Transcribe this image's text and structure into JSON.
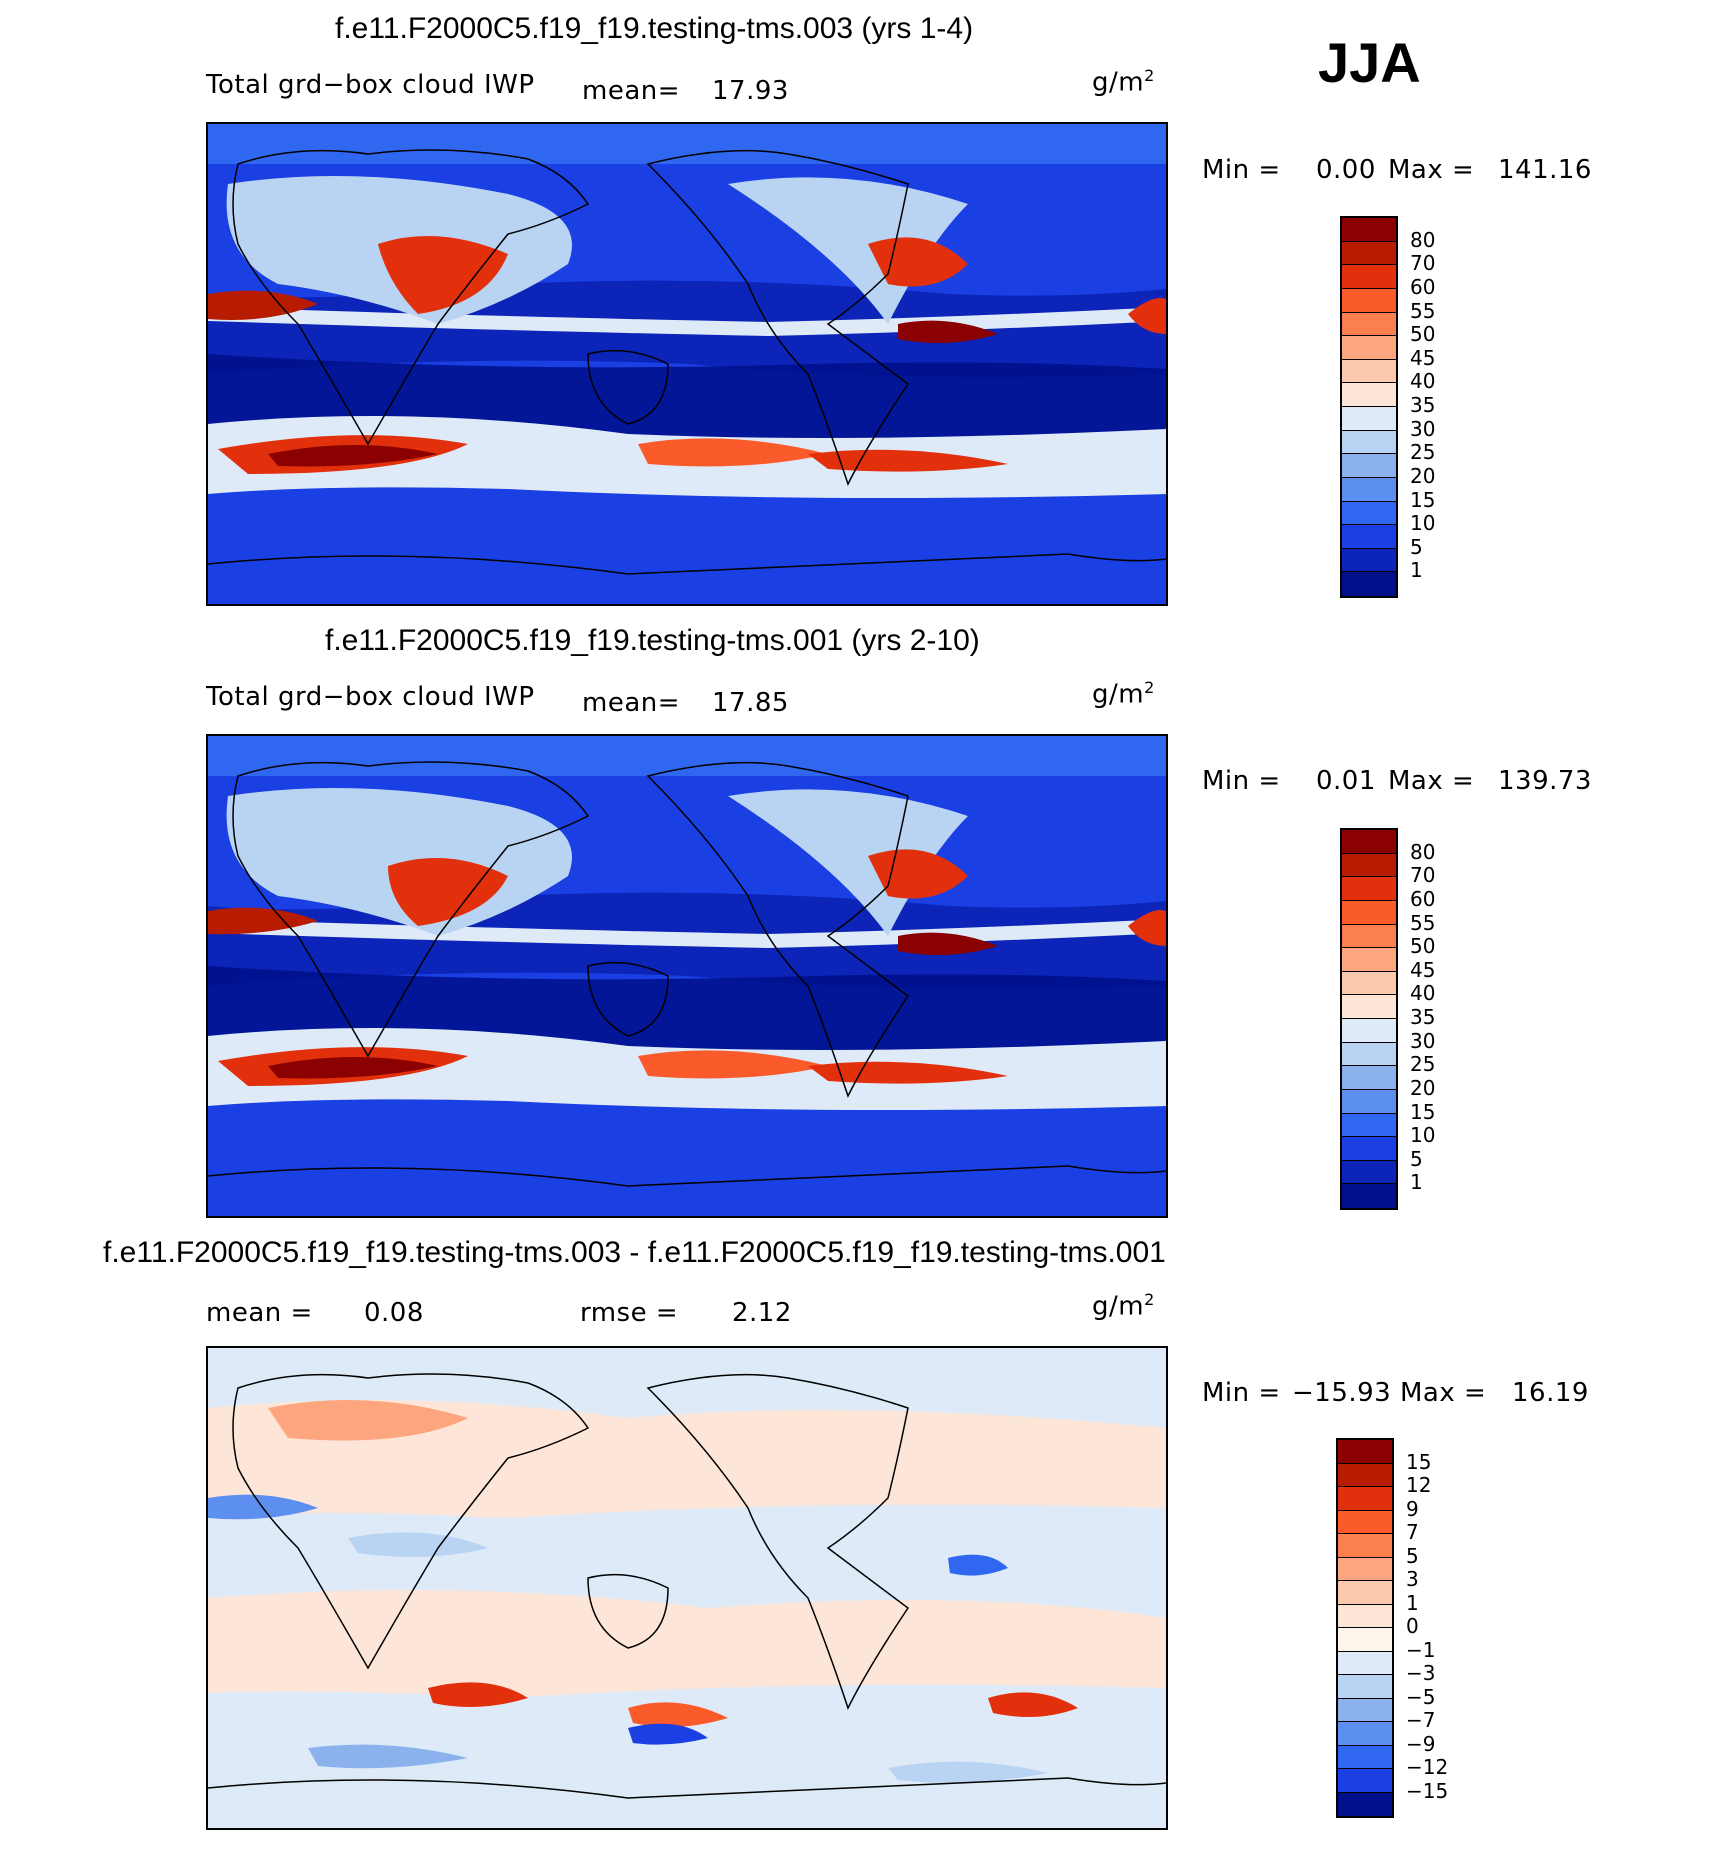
{
  "season": "JJA",
  "panels": [
    {
      "title": "f.e11.F2000C5.f19_f19.testing-tms.003 (yrs 1-4)",
      "variable": "Total grd−box cloud IWP",
      "mean_label": "mean=",
      "mean_value": "17.93",
      "units": "g/m",
      "units_exp": "2",
      "min_label": "Min =",
      "min_value": "0.00",
      "max_label": "Max =",
      "max_value": "141.16"
    },
    {
      "title": "f.e11.F2000C5.f19_f19.testing-tms.001 (yrs 2-10)",
      "variable": "Total grd−box cloud IWP",
      "mean_label": "mean=",
      "mean_value": "17.85",
      "units": "g/m",
      "units_exp": "2",
      "min_label": "Min =",
      "min_value": "0.01",
      "max_label": "Max =",
      "max_value": "139.73"
    },
    {
      "title": "f.e11.F2000C5.f19_f19.testing-tms.003 - f.e11.F2000C5.f19_f19.testing-tms.001",
      "mean_label": "mean =",
      "mean_value": "0.08",
      "rmse_label": "rmse =",
      "rmse_value": "2.12",
      "units": "g/m",
      "units_exp": "2",
      "min_label": "Min =",
      "min_value": "−15.93",
      "max_label": "Max =",
      "max_value": "16.19"
    }
  ],
  "colorbar_field": {
    "labels": [
      "80",
      "70",
      "60",
      "55",
      "50",
      "45",
      "40",
      "35",
      "30",
      "25",
      "20",
      "15",
      "10",
      "5",
      "1"
    ],
    "colors": [
      "#8b0000",
      "#b71c00",
      "#e2300c",
      "#fb5a2a",
      "#fc7f4e",
      "#fca57f",
      "#fdc9ad",
      "#fde6d7",
      "#deeaf8",
      "#b9d3f2",
      "#8cb2ee",
      "#5c8ff0",
      "#2f67f0",
      "#1a3fe2",
      "#0c25b8",
      "#000f8a"
    ]
  },
  "colorbar_diff": {
    "labels": [
      "15",
      "12",
      "9",
      "7",
      "5",
      "3",
      "1",
      "0",
      "−1",
      "−3",
      "−5",
      "−7",
      "−9",
      "−12",
      "−15"
    ],
    "colors": [
      "#8b0000",
      "#b71c00",
      "#e2300c",
      "#fb5a2a",
      "#fc7f4e",
      "#fca57f",
      "#fdc9ad",
      "#fde6d7",
      "#fdf4ec",
      "#deeaf8",
      "#b9d3f2",
      "#8cb2ee",
      "#5c8ff0",
      "#2f67f0",
      "#1a3fe2",
      "#000f8a"
    ]
  },
  "chart_data": [
    {
      "type": "heatmap",
      "title": "f.e11.F2000C5.f19_f19.testing-tms.003 (yrs 1-4)",
      "field": "Total grd−box cloud IWP",
      "units": "g/m2",
      "season": "JJA",
      "mean": 17.93,
      "min": 0.0,
      "max": 141.16,
      "contour_levels": [
        1,
        5,
        10,
        15,
        20,
        25,
        30,
        35,
        40,
        45,
        50,
        55,
        60,
        70,
        80
      ]
    },
    {
      "type": "heatmap",
      "title": "f.e11.F2000C5.f19_f19.testing-tms.001 (yrs 2-10)",
      "field": "Total grd−box cloud IWP",
      "units": "g/m2",
      "season": "JJA",
      "mean": 17.85,
      "min": 0.01,
      "max": 139.73,
      "contour_levels": [
        1,
        5,
        10,
        15,
        20,
        25,
        30,
        35,
        40,
        45,
        50,
        55,
        60,
        70,
        80
      ]
    },
    {
      "type": "heatmap",
      "title": "f.e11.F2000C5.f19_f19.testing-tms.003 - f.e11.F2000C5.f19_f19.testing-tms.001",
      "units": "g/m2",
      "season": "JJA",
      "mean": 0.08,
      "rmse": 2.12,
      "min": -15.93,
      "max": 16.19,
      "contour_levels": [
        -15,
        -12,
        -9,
        -7,
        -5,
        -3,
        -1,
        0,
        1,
        3,
        5,
        7,
        9,
        12,
        15
      ]
    }
  ]
}
